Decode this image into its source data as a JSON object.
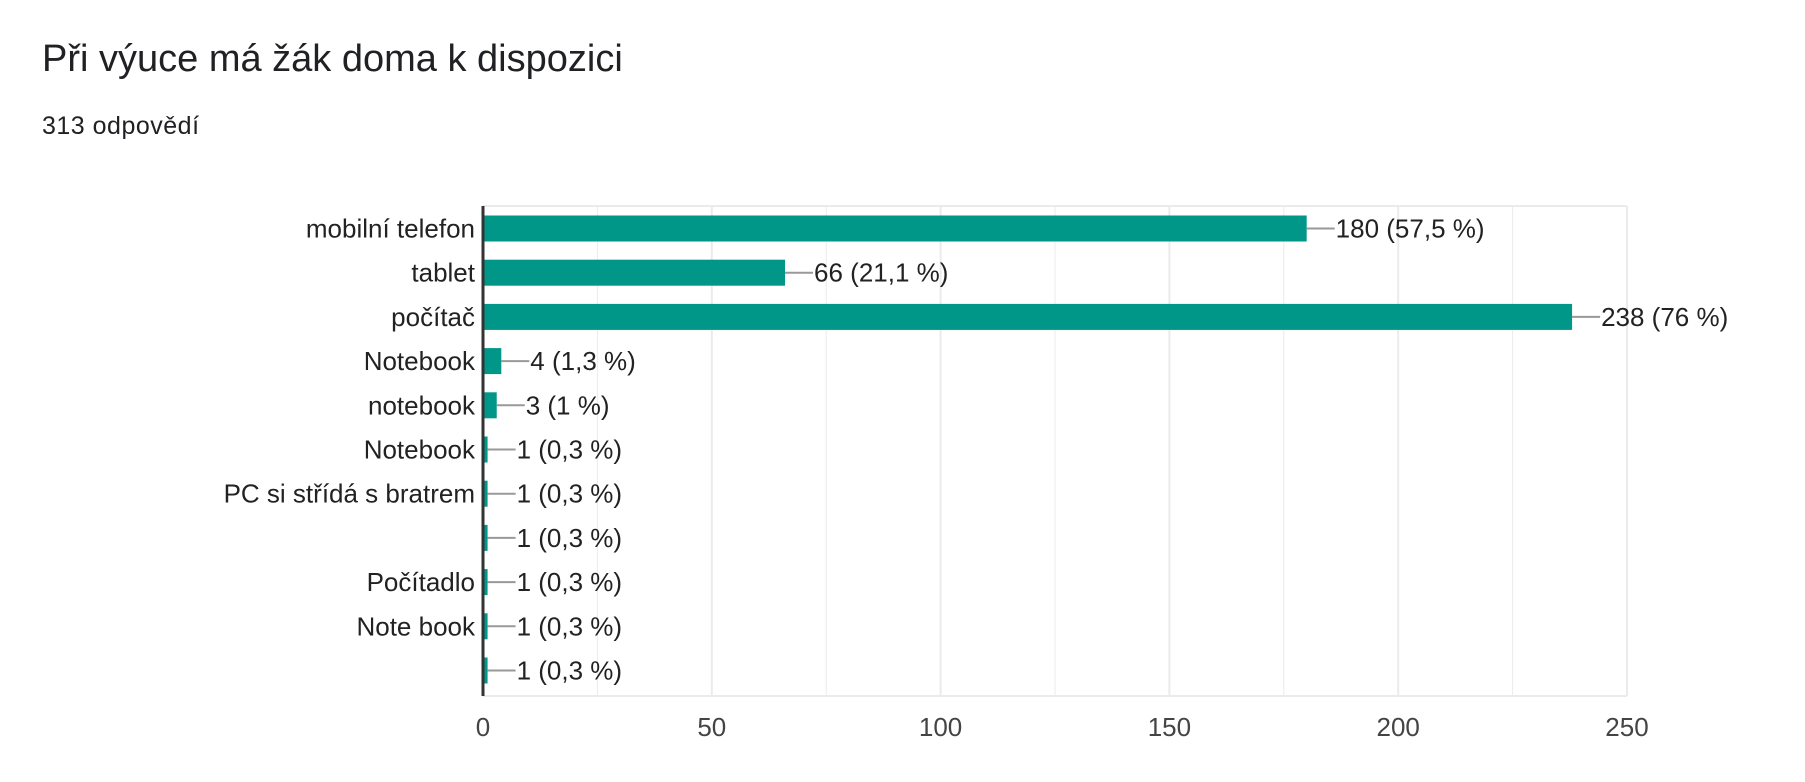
{
  "header": {
    "title": "Při výuce má žák doma k dispozici",
    "responses": "313 odpovědí"
  },
  "colors": {
    "bar": "#009688",
    "grid": "#ebebeb",
    "axis": "#333333",
    "leader": "#999999",
    "text": "#222222",
    "tick_text": "#444444"
  },
  "chart_data": {
    "type": "bar",
    "orientation": "horizontal",
    "title": "Při výuce má žák doma k dispozici",
    "categories": [
      "mobilní telefon",
      "tablet",
      "počítač",
      "Notebook",
      "notebook",
      "Notebook",
      "PC si střídá s bratrem",
      "",
      "Počítadlo",
      "Note book",
      ""
    ],
    "values": [
      180,
      66,
      238,
      4,
      3,
      1,
      1,
      1,
      1,
      1,
      1
    ],
    "data_labels": [
      "180 (57,5 %)",
      "66 (21,1 %)",
      "238 (76 %)",
      "4 (1,3 %)",
      "3 (1 %)",
      "1 (0,3 %)",
      "1 (0,3 %)",
      "1 (0,3 %)",
      "1 (0,3 %)",
      "1 (0,3 %)",
      "1 (0,3 %)"
    ],
    "xlim": [
      0,
      250
    ],
    "x_ticks": [
      0,
      50,
      100,
      150,
      200,
      250
    ],
    "x_minor_ticks": [
      25,
      75,
      125,
      175,
      225
    ],
    "grid": true,
    "legend": "none"
  }
}
